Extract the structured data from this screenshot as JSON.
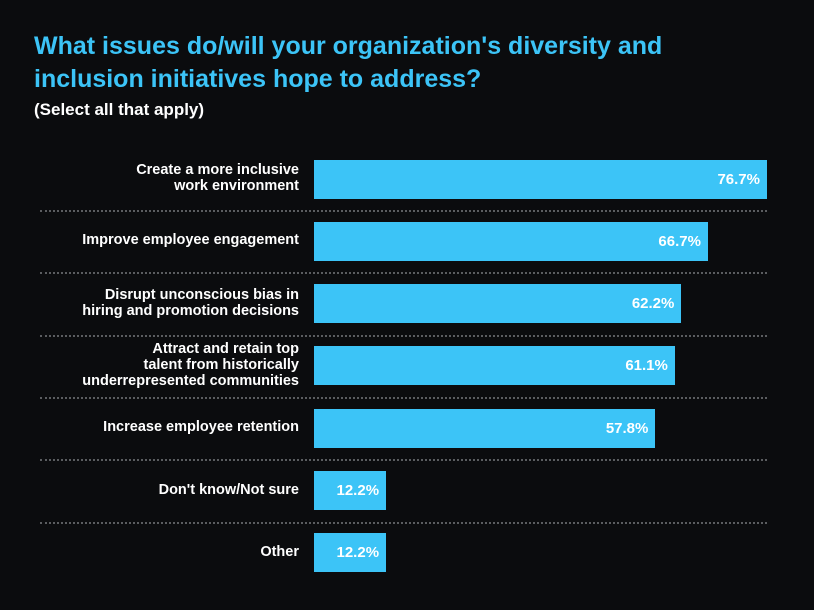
{
  "chart_data": {
    "type": "bar",
    "orientation": "horizontal",
    "title": "What issues do/will your organization's diversity and inclusion initiatives hope to address?",
    "subtitle": "(Select all that apply)",
    "categories": [
      "Create a more inclusive\nwork environment",
      "Improve employee engagement",
      "Disrupt unconscious bias in\nhiring and promotion decisions",
      "Attract and retain top\ntalent  from historically\nunderrepresented communities",
      "Increase employee retention",
      "Don't know/Not sure",
      "Other"
    ],
    "values": [
      76.7,
      66.7,
      62.2,
      61.1,
      57.8,
      12.2,
      12.2
    ],
    "value_labels": [
      "76.7%",
      "66.7%",
      "62.2%",
      "61.1%",
      "57.8%",
      "12.2%",
      "12.2%"
    ],
    "unit": "%",
    "xlim": [
      0,
      76.7
    ],
    "grid": false,
    "legend": "none"
  },
  "colors": {
    "background": "#0b0c0e",
    "bar": "#3cc4f7",
    "title": "#3cc4f7",
    "text": "#ffffff",
    "separator": "#5b5d60"
  }
}
